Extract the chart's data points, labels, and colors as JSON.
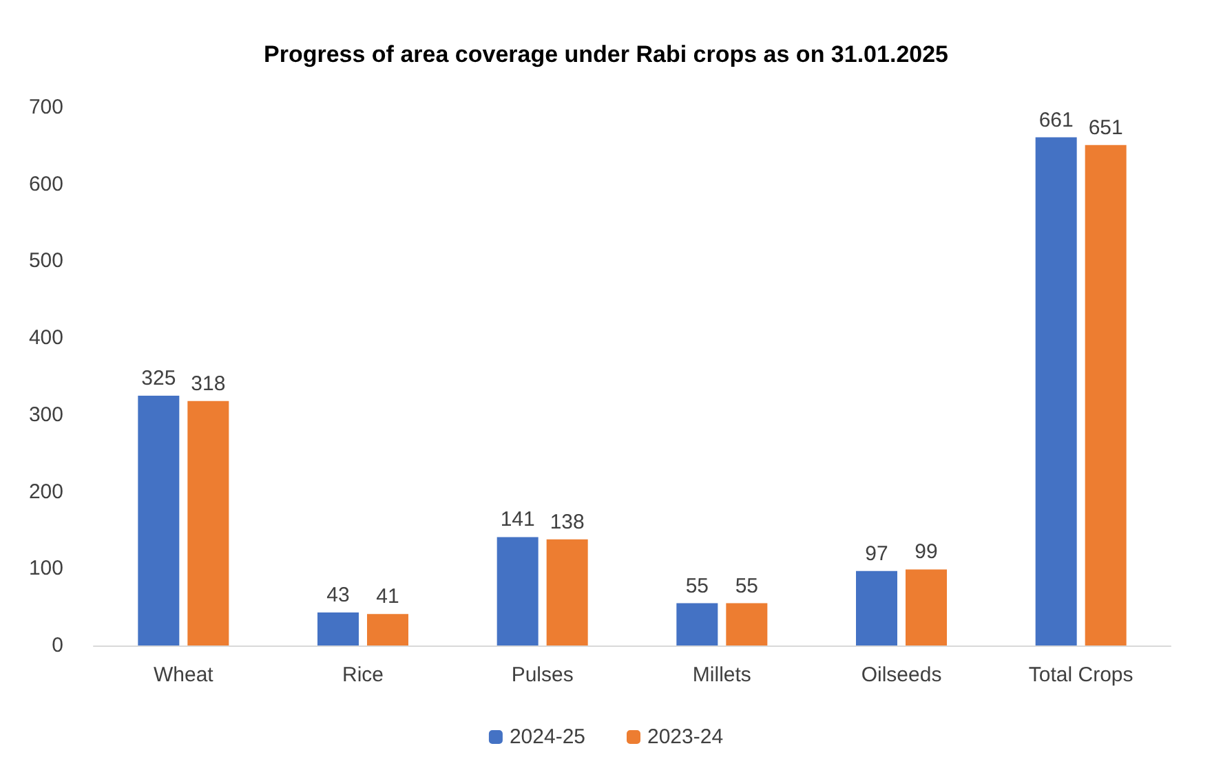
{
  "chart_data": {
    "type": "bar",
    "title": "Progress of area coverage under Rabi crops as on 31.01.2025",
    "categories": [
      "Wheat",
      "Rice",
      "Pulses",
      "Millets",
      "Oilseeds",
      "Total Crops"
    ],
    "series": [
      {
        "name": "2024-25",
        "color": "#4472c4",
        "values": [
          325,
          43,
          141,
          55,
          97,
          661
        ]
      },
      {
        "name": "2023-24",
        "color": "#ed7d31",
        "values": [
          318,
          41,
          138,
          55,
          99,
          651
        ]
      }
    ],
    "ylim": [
      0,
      700
    ],
    "yticks": [
      0,
      100,
      200,
      300,
      400,
      500,
      600,
      700
    ],
    "grid": false,
    "legend": "bottom",
    "data_labels": true
  }
}
